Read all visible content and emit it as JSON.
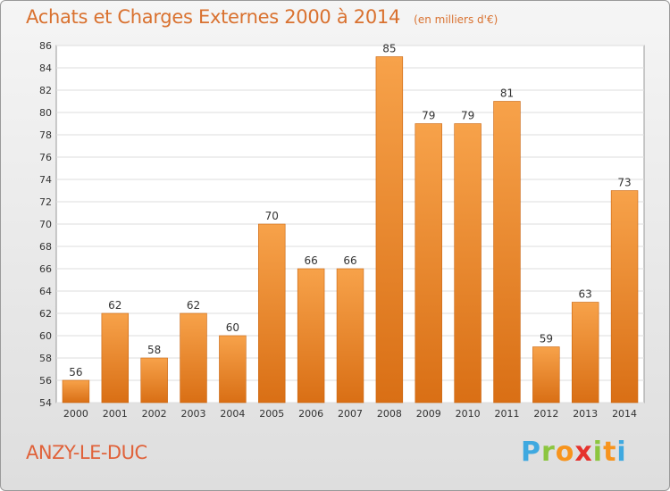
{
  "chart_data": {
    "type": "bar",
    "title": "Achats et Charges Externes 2000 à 2014",
    "subtitle": "(en milliers d'€)",
    "categories": [
      "2000",
      "2001",
      "2002",
      "2003",
      "2004",
      "2005",
      "2006",
      "2007",
      "2008",
      "2009",
      "2010",
      "2011",
      "2012",
      "2013",
      "2014"
    ],
    "values": [
      56,
      62,
      58,
      62,
      60,
      70,
      66,
      66,
      85,
      79,
      79,
      81,
      59,
      63,
      73
    ],
    "ylim": [
      54,
      86
    ],
    "yticks": [
      54,
      56,
      58,
      60,
      62,
      64,
      66,
      68,
      70,
      72,
      74,
      76,
      78,
      80,
      82,
      84,
      86
    ],
    "grid": true,
    "bar_color": "#f0892a"
  },
  "location": "ANZY-LE-DUC",
  "brand": {
    "letters": [
      "P",
      "r",
      "o",
      "x",
      "i",
      "t",
      "i"
    ],
    "colors": [
      "#3fa9e0",
      "#8cc63f",
      "#f7941d",
      "#e5322d",
      "#8cc63f",
      "#f7941d",
      "#3fa9e0"
    ]
  }
}
